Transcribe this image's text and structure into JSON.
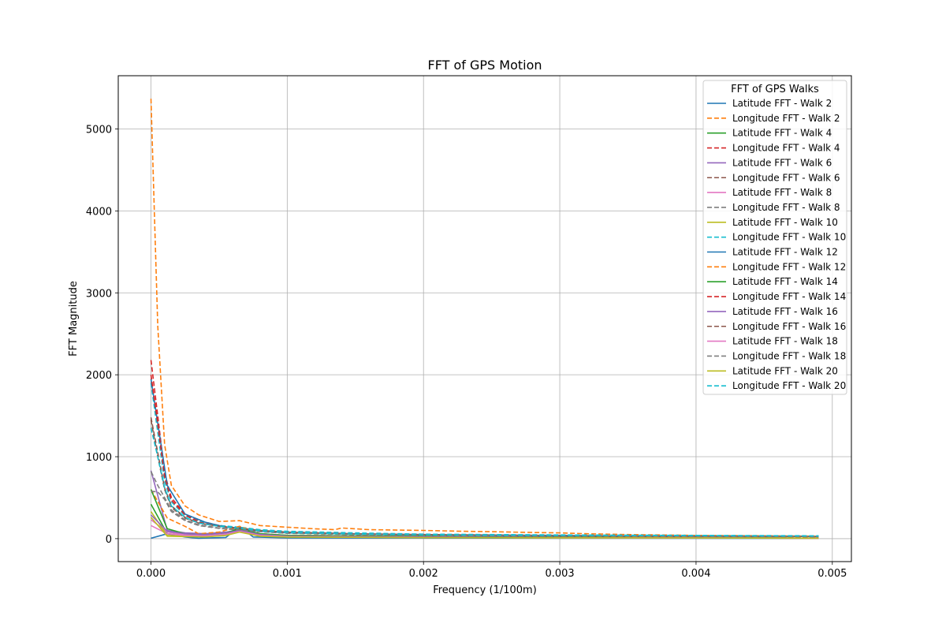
{
  "chart_data": {
    "type": "line",
    "title": "FFT of GPS Motion",
    "xlabel": "Frequency (1/100m)",
    "ylabel": "FFT Magnitude",
    "xlim": [
      -0.00024,
      0.00514
    ],
    "ylim": [
      -280,
      5650
    ],
    "xticks": [
      0.0,
      0.001,
      0.002,
      0.003,
      0.004,
      0.005
    ],
    "xtick_labels": [
      "0.000",
      "0.001",
      "0.002",
      "0.003",
      "0.004",
      "0.005"
    ],
    "yticks": [
      0,
      1000,
      2000,
      3000,
      4000,
      5000
    ],
    "ytick_labels": [
      "0",
      "1000",
      "2000",
      "3000",
      "4000",
      "5000"
    ],
    "grid": true,
    "legend_title": "FFT of GPS Walks",
    "legend_position": "top-right",
    "series": [
      {
        "name": "Latitude FFT - Walk 2",
        "color": "#1f77b4",
        "dash": "solid",
        "x": [
          0.0,
          0.00012,
          0.00025,
          0.00035,
          0.00055,
          0.00065,
          0.00075,
          0.001,
          0.002,
          0.003,
          0.004,
          0.0049
        ],
        "values": [
          5,
          60,
          20,
          5,
          15,
          150,
          20,
          10,
          8,
          6,
          5,
          3
        ]
      },
      {
        "name": "Longitude FFT - Walk 2",
        "color": "#ff7f0e",
        "dash": "dashed",
        "x": [
          0.0,
          5e-05,
          0.0001,
          0.00015,
          0.00025,
          0.00035,
          0.0005,
          0.00065,
          0.0008,
          0.001,
          0.0012,
          0.00135,
          0.0014,
          0.0016,
          0.002,
          0.0023,
          0.0025,
          0.0028,
          0.003,
          0.0032,
          0.0035,
          0.004,
          0.0045,
          0.0049
        ],
        "values": [
          5370,
          2600,
          1150,
          650,
          400,
          290,
          210,
          220,
          160,
          140,
          120,
          110,
          130,
          110,
          100,
          90,
          85,
          75,
          70,
          60,
          50,
          40,
          35,
          30
        ]
      },
      {
        "name": "Latitude FFT - Walk 4",
        "color": "#2ca02c",
        "dash": "solid",
        "x": [
          0.0,
          0.00012,
          0.00025,
          0.0004,
          0.00055,
          0.00065,
          0.0008,
          0.001,
          0.002,
          0.003,
          0.004,
          0.0049
        ],
        "values": [
          420,
          60,
          40,
          30,
          60,
          130,
          50,
          30,
          20,
          15,
          10,
          5
        ]
      },
      {
        "name": "Longitude FFT - Walk 4",
        "color": "#d62728",
        "dash": "dashed",
        "x": [
          0.0,
          5e-05,
          0.0001,
          0.00015,
          0.00025,
          0.00035,
          0.0005,
          0.00065,
          0.0008,
          0.001,
          0.0015,
          0.002,
          0.003,
          0.004,
          0.0049
        ],
        "values": [
          2180,
          1500,
          800,
          500,
          300,
          220,
          160,
          130,
          100,
          80,
          60,
          50,
          40,
          30,
          25
        ]
      },
      {
        "name": "Latitude FFT - Walk 6",
        "color": "#9467bd",
        "dash": "solid",
        "x": [
          0.0,
          0.00012,
          0.00025,
          0.0004,
          0.00055,
          0.00065,
          0.0008,
          0.001,
          0.002,
          0.003,
          0.004,
          0.0049
        ],
        "values": [
          830,
          100,
          70,
          60,
          80,
          110,
          60,
          40,
          25,
          15,
          10,
          5
        ]
      },
      {
        "name": "Longitude FFT - Walk 6",
        "color": "#8c564b",
        "dash": "dashed",
        "x": [
          0.0,
          5e-05,
          0.0001,
          0.00015,
          0.00025,
          0.00035,
          0.0005,
          0.00065,
          0.0008,
          0.001,
          0.0015,
          0.002,
          0.003,
          0.004,
          0.0049
        ],
        "values": [
          1450,
          1000,
          600,
          380,
          250,
          190,
          150,
          130,
          100,
          80,
          60,
          50,
          40,
          30,
          25
        ]
      },
      {
        "name": "Latitude FFT - Walk 8",
        "color": "#e377c2",
        "dash": "solid",
        "x": [
          0.0,
          0.00012,
          0.00025,
          0.0004,
          0.00055,
          0.00065,
          0.0008,
          0.001,
          0.002,
          0.003,
          0.004,
          0.0049
        ],
        "values": [
          230,
          80,
          50,
          40,
          60,
          100,
          50,
          30,
          20,
          15,
          10,
          5
        ]
      },
      {
        "name": "Longitude FFT - Walk 8",
        "color": "#7f7f7f",
        "dash": "dashed",
        "x": [
          0.0,
          5e-05,
          0.0001,
          0.00015,
          0.00025,
          0.00035,
          0.0005,
          0.00065,
          0.0008,
          0.001,
          0.0015,
          0.002,
          0.003,
          0.004,
          0.0049
        ],
        "values": [
          820,
          650,
          500,
          350,
          230,
          170,
          130,
          110,
          90,
          70,
          55,
          45,
          35,
          30,
          25
        ]
      },
      {
        "name": "Latitude FFT - Walk 10",
        "color": "#bcbd22",
        "dash": "solid",
        "x": [
          0.0,
          0.00012,
          0.00025,
          0.0004,
          0.00055,
          0.00065,
          0.0008,
          0.001,
          0.002,
          0.003,
          0.004,
          0.0049
        ],
        "values": [
          330,
          40,
          30,
          25,
          40,
          90,
          30,
          20,
          15,
          10,
          8,
          5
        ]
      },
      {
        "name": "Longitude FFT - Walk 10",
        "color": "#17becf",
        "dash": "dashed",
        "x": [
          0.0,
          5e-05,
          0.0001,
          0.00015,
          0.00025,
          0.00035,
          0.0005,
          0.00065,
          0.0008,
          0.001,
          0.0015,
          0.002,
          0.003,
          0.004,
          0.0049
        ],
        "values": [
          1900,
          1300,
          700,
          450,
          280,
          210,
          160,
          140,
          110,
          90,
          70,
          55,
          45,
          40,
          35
        ]
      },
      {
        "name": "Latitude FFT - Walk 12",
        "color": "#1f77b4",
        "dash": "solid",
        "x": [
          0.0,
          0.00012,
          0.00025,
          0.0004,
          0.00055,
          0.00065,
          0.0008,
          0.001,
          0.002,
          0.003,
          0.004,
          0.0049
        ],
        "values": [
          1950,
          650,
          300,
          200,
          140,
          130,
          90,
          70,
          40,
          25,
          15,
          5
        ]
      },
      {
        "name": "Longitude FFT - Walk 12",
        "color": "#ff7f0e",
        "dash": "dashed",
        "x": [
          0.0,
          0.00012,
          0.00025,
          0.00035,
          0.0005,
          0.00065,
          0.0008,
          0.001,
          0.002,
          0.003,
          0.004,
          0.0049
        ],
        "values": [
          600,
          250,
          150,
          60,
          80,
          150,
          60,
          40,
          30,
          20,
          15,
          10
        ]
      },
      {
        "name": "Latitude FFT - Walk 14",
        "color": "#2ca02c",
        "dash": "solid",
        "x": [
          0.0,
          0.00012,
          0.00025,
          0.0004,
          0.00055,
          0.00065,
          0.0008,
          0.001,
          0.002,
          0.003,
          0.004,
          0.0049
        ],
        "values": [
          600,
          120,
          60,
          50,
          70,
          120,
          60,
          40,
          25,
          15,
          10,
          5
        ]
      },
      {
        "name": "Longitude FFT - Walk 14",
        "color": "#d62728",
        "dash": "dashed",
        "x": [
          0.0,
          5e-05,
          0.0001,
          0.00015,
          0.00025,
          0.00035,
          0.0005,
          0.00065,
          0.0008,
          0.001,
          0.0015,
          0.002,
          0.003,
          0.004,
          0.0049
        ],
        "values": [
          2000,
          1400,
          750,
          470,
          290,
          200,
          150,
          120,
          95,
          75,
          55,
          45,
          35,
          30,
          25
        ]
      },
      {
        "name": "Latitude FFT - Walk 16",
        "color": "#9467bd",
        "dash": "solid",
        "x": [
          0.0,
          0.00012,
          0.00025,
          0.0004,
          0.00055,
          0.00065,
          0.0008,
          0.001,
          0.002,
          0.003,
          0.004,
          0.0049
        ],
        "values": [
          290,
          90,
          60,
          50,
          70,
          100,
          50,
          30,
          20,
          12,
          8,
          5
        ]
      },
      {
        "name": "Longitude FFT - Walk 16",
        "color": "#8c564b",
        "dash": "dashed",
        "x": [
          0.0,
          5e-05,
          0.0001,
          0.00015,
          0.00025,
          0.00035,
          0.0005,
          0.00065,
          0.0008,
          0.001,
          0.0015,
          0.002,
          0.003,
          0.004,
          0.0049
        ],
        "values": [
          1480,
          1050,
          620,
          400,
          260,
          190,
          150,
          125,
          95,
          75,
          55,
          45,
          35,
          30,
          25
        ]
      },
      {
        "name": "Latitude FFT - Walk 18",
        "color": "#e377c2",
        "dash": "solid",
        "x": [
          0.0,
          0.00012,
          0.00025,
          0.0004,
          0.00055,
          0.00065,
          0.0008,
          0.001,
          0.002,
          0.003,
          0.004,
          0.0049
        ],
        "values": [
          160,
          60,
          40,
          35,
          50,
          90,
          40,
          25,
          15,
          10,
          8,
          5
        ]
      },
      {
        "name": "Longitude FFT - Walk 18",
        "color": "#7f7f7f",
        "dash": "dashed",
        "x": [
          0.0,
          5e-05,
          0.0001,
          0.00015,
          0.00025,
          0.00035,
          0.0005,
          0.00065,
          0.0008,
          0.001,
          0.0015,
          0.002,
          0.003,
          0.004,
          0.0049
        ],
        "values": [
          580,
          570,
          480,
          330,
          220,
          160,
          125,
          105,
          85,
          65,
          50,
          40,
          32,
          28,
          22
        ]
      },
      {
        "name": "Latitude FFT - Walk 20",
        "color": "#bcbd22",
        "dash": "solid",
        "x": [
          0.0,
          0.00012,
          0.00025,
          0.0004,
          0.00055,
          0.00065,
          0.0008,
          0.001,
          0.002,
          0.003,
          0.004,
          0.0049
        ],
        "values": [
          260,
          30,
          25,
          20,
          40,
          80,
          30,
          20,
          12,
          10,
          8,
          5
        ]
      },
      {
        "name": "Longitude FFT - Walk 20",
        "color": "#17becf",
        "dash": "dashed",
        "x": [
          0.0,
          5e-05,
          0.0001,
          0.00015,
          0.00025,
          0.00035,
          0.0005,
          0.00065,
          0.0008,
          0.001,
          0.0015,
          0.002,
          0.003,
          0.004,
          0.0049
        ],
        "values": [
          1350,
          1000,
          620,
          400,
          260,
          190,
          150,
          125,
          95,
          75,
          55,
          45,
          38,
          35,
          30
        ]
      }
    ]
  }
}
